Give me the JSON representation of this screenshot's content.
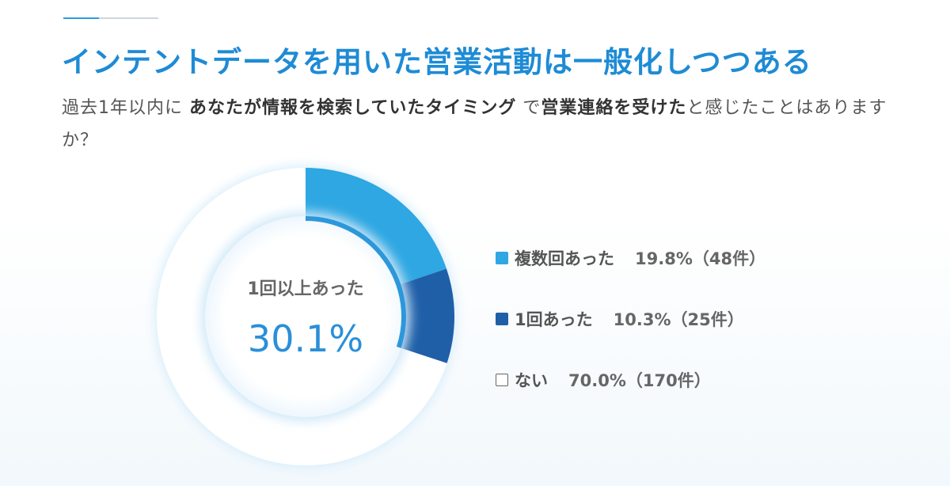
{
  "title": "インテントデータを用いた営業活動は一般化しつつある",
  "question": {
    "part1": "過去1年以内に",
    "part2": "あなたが情報を検索していたタイミング",
    "part3": "で",
    "part4": "営業連絡を受けた",
    "part5": "と感じたことはありますか？"
  },
  "center": {
    "label": "1回以上あった",
    "value": "30.1%"
  },
  "colors": {
    "multiple": "#2ea7e2",
    "once": "#1f5fa8",
    "none": "#ffffff",
    "title": "#1e8bd6"
  },
  "chart_data": {
    "type": "pie",
    "title": "",
    "categories": [
      "複数回あった",
      "1回あった",
      "ない"
    ],
    "values": [
      19.8,
      10.3,
      70.0
    ],
    "counts": [
      48,
      25,
      170
    ],
    "center_label": "1回以上あった",
    "center_value": 30.1
  },
  "legend": [
    {
      "label": "複数回あった",
      "value": "19.8%（48件）",
      "color": "#2ea7e2"
    },
    {
      "label": "1回あった",
      "value": "10.3%（25件）",
      "color": "#1f5fa8"
    },
    {
      "label": "ない",
      "value": "70.0%（170件）",
      "color": "#ffffff"
    }
  ]
}
